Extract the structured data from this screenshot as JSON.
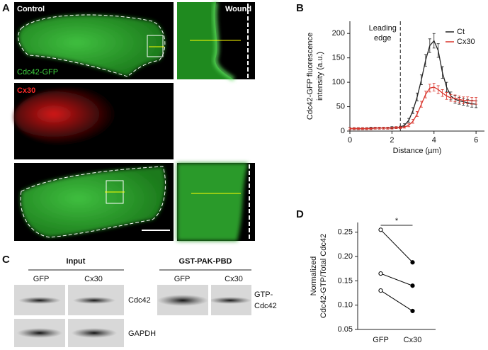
{
  "panels": [
    "A",
    "B",
    "C",
    "D"
  ],
  "microscopy": {
    "control": "Control",
    "wound": "Wound",
    "gfp": "Cdc42-GFP",
    "cx30": "Cx30"
  },
  "blots": {
    "input": "Input",
    "pulldown": "GST-PAK-PBD",
    "lanes": [
      "GFP",
      "Cx30",
      "GFP",
      "Cx30"
    ],
    "labels": [
      "Cdc42",
      "GAPDH",
      "GTP-",
      "Cdc42"
    ]
  },
  "chart_data": [
    {
      "type": "line",
      "x": [
        0,
        0.2,
        0.4,
        0.6,
        0.8,
        1.0,
        1.2,
        1.4,
        1.6,
        1.8,
        2.0,
        2.2,
        2.4,
        2.6,
        2.8,
        3.0,
        3.2,
        3.4,
        3.6,
        3.8,
        4.0,
        4.2,
        4.4,
        4.6,
        4.8,
        5.0,
        5.2,
        5.4,
        5.6,
        5.8,
        6.0
      ],
      "series": [
        {
          "name": "Ct",
          "color": "#222222",
          "values": [
            5,
            5,
            5,
            5,
            5,
            6,
            6,
            6,
            6,
            6,
            7,
            7,
            8,
            12,
            22,
            42,
            70,
            105,
            145,
            175,
            185,
            165,
            120,
            90,
            72,
            65,
            62,
            60,
            58,
            56,
            55
          ],
          "errors": [
            2,
            2,
            2,
            2,
            2,
            2,
            2,
            2,
            2,
            2,
            2,
            2,
            2,
            3,
            4,
            6,
            8,
            10,
            12,
            14,
            15,
            14,
            12,
            10,
            8,
            8,
            7,
            7,
            7,
            7,
            7
          ]
        },
        {
          "name": "Cx30",
          "color": "#d9342b",
          "values": [
            5,
            5,
            5,
            5,
            5,
            5,
            6,
            6,
            6,
            6,
            6,
            7,
            7,
            8,
            12,
            20,
            35,
            55,
            75,
            88,
            90,
            85,
            78,
            72,
            68,
            67,
            65,
            63,
            63,
            62,
            62
          ],
          "errors": [
            2,
            2,
            2,
            2,
            2,
            2,
            2,
            2,
            2,
            2,
            2,
            2,
            2,
            2,
            3,
            4,
            5,
            6,
            7,
            8,
            8,
            8,
            7,
            7,
            7,
            7,
            7,
            7,
            7,
            7,
            7
          ]
        }
      ],
      "xlim": [
        0,
        6.4
      ],
      "ylim": [
        0,
        225
      ],
      "xticks": [
        0,
        2,
        4,
        6
      ],
      "yticks": [
        0,
        50,
        100,
        150,
        200
      ],
      "x_label": "Distance (µm)",
      "y_label": [
        "Cdc42-GFP fluorescence",
        "intensity (a.u.)"
      ],
      "annotation": {
        "lines": [
          "Leading",
          "edge"
        ],
        "x": 2.4
      },
      "legend": "top-right"
    },
    {
      "type": "paired",
      "categories": [
        "GFP",
        "Cx30"
      ],
      "marker_fill": [
        "#ffffff",
        "#000000"
      ],
      "series": [
        {
          "color": "#000000",
          "values": [
            0.255,
            0.188
          ]
        },
        {
          "color": "#000000",
          "values": [
            0.165,
            0.14
          ]
        },
        {
          "color": "#000000",
          "values": [
            0.13,
            0.088
          ]
        }
      ],
      "ylim": [
        0.05,
        0.27
      ],
      "yticks": [
        0.05,
        {
          "value": 0.1,
          "label": "0.10"
        },
        0.15,
        {
          "value": 0.2,
          "label": "0.20"
        },
        0.25
      ],
      "y_label": [
        "Normalized",
        "Cdc42-GTP/Total Cdc42"
      ],
      "annotation": "*"
    }
  ]
}
